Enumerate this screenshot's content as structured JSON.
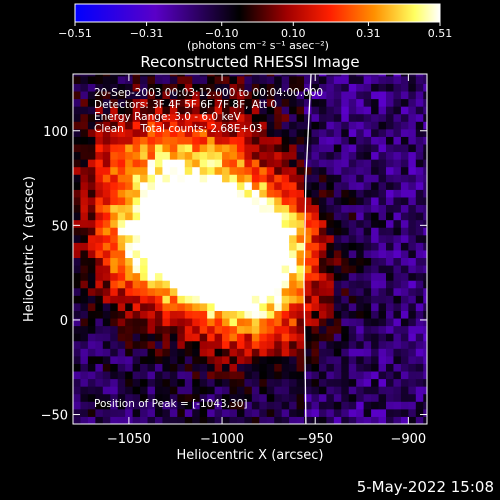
{
  "chart_data": {
    "type": "heatmap",
    "title": "Reconstructed RHESSI Image",
    "xlabel": "Heliocentric X (arcsec)",
    "ylabel": "Heliocentric Y (arcsec)",
    "xlim": [
      -1080,
      -890
    ],
    "ylim": [
      -55,
      130
    ],
    "x_ticks": [
      -1050,
      -1000,
      -950,
      -900
    ],
    "y_ticks": [
      -50,
      0,
      50,
      100
    ],
    "colorbar": {
      "min": -0.51,
      "max": 0.51,
      "ticks": [
        -0.51,
        -0.31,
        -0.1,
        0.1,
        0.31,
        0.51
      ],
      "tick_labels": [
        "−0.51",
        "−0.31",
        "−0.10",
        "0.10",
        "0.31",
        "0.51"
      ],
      "unit_label": "(photons cm⁻² s⁻¹ asec⁻²)",
      "colors": [
        "#0000ff",
        "#5a00c8",
        "#000000",
        "#a00000",
        "#ff2000",
        "#ff9000",
        "#ffff60",
        "#ffffff"
      ]
    },
    "annotations": [
      "20-Sep-2003 00:03:12.000 to 00:04:00.000",
      "Detectors: 3F 4F 5F 6F 7F 8F, Att 0",
      "Energy Range: 3.0 - 6.0 keV",
      "Clean     Total counts: 2.68E+03"
    ],
    "peak_label": "Position of Peak = [-1043,30]",
    "peak": [
      -1043,
      30
    ],
    "sources": [
      {
        "x": -1040,
        "y": 38,
        "value": 0.51
      },
      {
        "x": -1008,
        "y": 44,
        "value": 0.47
      },
      {
        "x": -990,
        "y": 38,
        "value": 0.45
      },
      {
        "x": -972,
        "y": 42,
        "value": 0.36
      },
      {
        "x": -1020,
        "y": 72,
        "value": 0.32
      },
      {
        "x": -1050,
        "y": 88,
        "value": 0.26
      },
      {
        "x": -1000,
        "y": 10,
        "value": 0.22
      },
      {
        "x": -970,
        "y": 2,
        "value": 0.2
      },
      {
        "x": -995,
        "y": 100,
        "value": 0.16
      }
    ],
    "limb_line": [
      [
        -952,
        135
      ],
      [
        -955,
        75
      ],
      [
        -956,
        20
      ],
      [
        -955,
        -55
      ]
    ]
  },
  "timestamp": "5-May-2022 15:08"
}
